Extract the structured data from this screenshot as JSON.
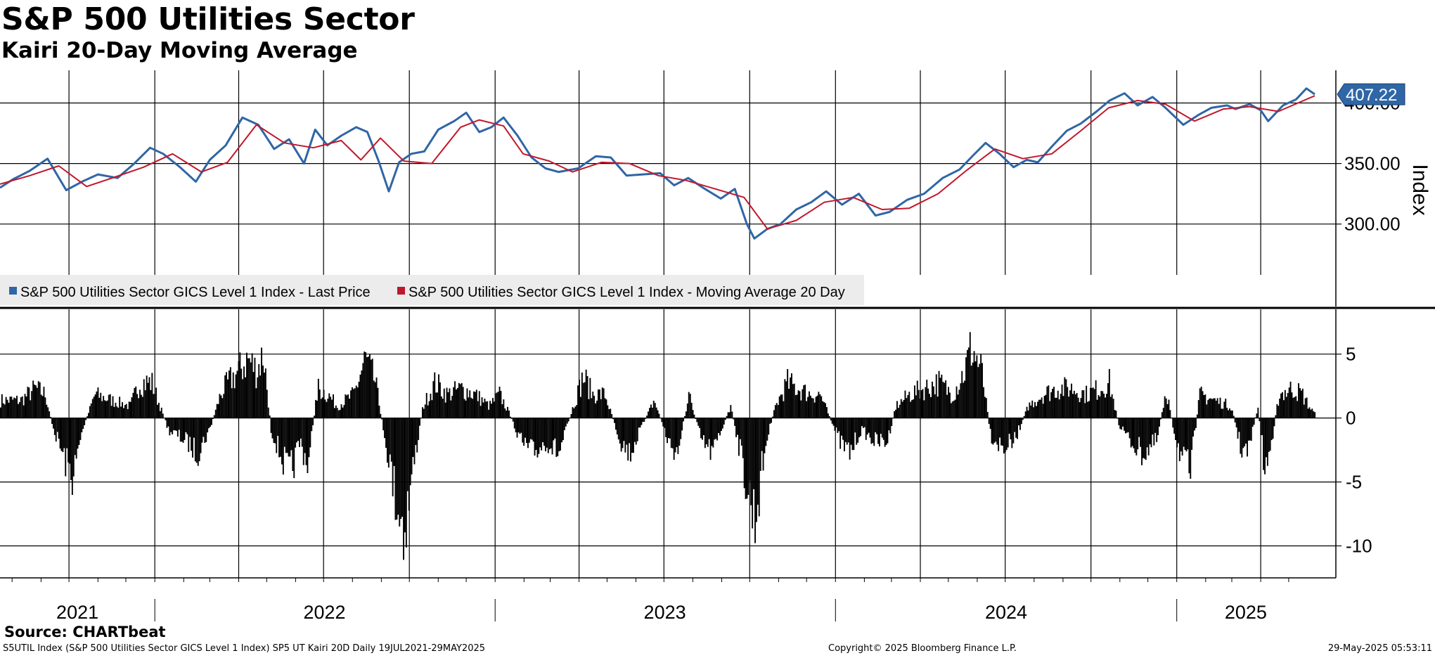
{
  "title": "S&P 500 Utilities Sector",
  "subtitle": "Kairi 20-Day Moving Average",
  "source": "Source: CHARTbeat",
  "footer": {
    "left": "S5UTIL Index (S&P 500 Utilities Sector GICS Level 1 Index) SP5 UT Kairi 20D  Daily 19JUL2021-29MAY2025",
    "center": "Copyright© 2025 Bloomberg Finance L.P.",
    "right": "29-May-2025 05:53:11"
  },
  "colors": {
    "price": "#2f66a6",
    "moving_average": "#c0182b",
    "kairi_bars": "#000000",
    "last_price_tag": "#2f66a6",
    "legend_bg": "#ececec"
  },
  "chart_data": [
    {
      "type": "line",
      "panel": "upper",
      "ylabel": "Index",
      "ylim": [
        258,
        427
      ],
      "yticks": [
        300,
        350,
        400
      ],
      "ytick_labels": [
        "300.00",
        "350.00",
        "400.00"
      ],
      "grid": true,
      "legend_position": "bottom-left",
      "last_value_label": "407.22",
      "series": [
        {
          "name": "S&P 500 Utilities Sector GICS Level 1 Index - Last Price",
          "color": "#2f66a6",
          "points": [
            [
              "2021-07-19",
              330
            ],
            [
              "2021-08-02",
              337
            ],
            [
              "2021-08-20",
              344
            ],
            [
              "2021-09-08",
              354
            ],
            [
              "2021-09-28",
              328
            ],
            [
              "2021-10-15",
              335
            ],
            [
              "2021-11-01",
              341
            ],
            [
              "2021-11-22",
              338
            ],
            [
              "2021-12-10",
              350
            ],
            [
              "2021-12-27",
              363
            ],
            [
              "2022-01-10",
              358
            ],
            [
              "2022-01-28",
              347
            ],
            [
              "2022-02-14",
              335
            ],
            [
              "2022-03-01",
              353
            ],
            [
              "2022-03-18",
              365
            ],
            [
              "2022-04-05",
              388
            ],
            [
              "2022-04-22",
              382
            ],
            [
              "2022-05-09",
              362
            ],
            [
              "2022-05-25",
              370
            ],
            [
              "2022-06-10",
              350
            ],
            [
              "2022-06-22",
              378
            ],
            [
              "2022-07-05",
              365
            ],
            [
              "2022-07-20",
              373
            ],
            [
              "2022-08-05",
              380
            ],
            [
              "2022-08-17",
              376
            ],
            [
              "2022-08-29",
              352
            ],
            [
              "2022-09-09",
              327
            ],
            [
              "2022-09-20",
              351
            ],
            [
              "2022-10-03",
              358
            ],
            [
              "2022-10-17",
              360
            ],
            [
              "2022-11-01",
              378
            ],
            [
              "2022-11-18",
              385
            ],
            [
              "2022-12-01",
              392
            ],
            [
              "2022-12-15",
              376
            ],
            [
              "2022-12-28",
              380
            ],
            [
              "2023-01-10",
              388
            ],
            [
              "2023-01-25",
              373
            ],
            [
              "2023-02-09",
              355
            ],
            [
              "2023-02-24",
              346
            ],
            [
              "2023-03-10",
              343
            ],
            [
              "2023-03-31",
              346
            ],
            [
              "2023-04-19",
              356
            ],
            [
              "2023-05-05",
              355
            ],
            [
              "2023-05-22",
              340
            ],
            [
              "2023-06-08",
              341
            ],
            [
              "2023-06-27",
              342
            ],
            [
              "2023-07-12",
              332
            ],
            [
              "2023-07-27",
              338
            ],
            [
              "2023-08-14",
              329
            ],
            [
              "2023-08-31",
              321
            ],
            [
              "2023-09-15",
              329
            ],
            [
              "2023-09-28",
              300
            ],
            [
              "2023-10-06",
              288
            ],
            [
              "2023-10-20",
              296
            ],
            [
              "2023-11-03",
              300
            ],
            [
              "2023-11-20",
              312
            ],
            [
              "2023-12-06",
              318
            ],
            [
              "2023-12-22",
              327
            ],
            [
              "2024-01-08",
              316
            ],
            [
              "2024-01-26",
              325
            ],
            [
              "2024-02-13",
              307
            ],
            [
              "2024-02-28",
              310
            ],
            [
              "2024-03-18",
              320
            ],
            [
              "2024-04-05",
              325
            ],
            [
              "2024-04-25",
              338
            ],
            [
              "2024-05-13",
              345
            ],
            [
              "2024-05-28",
              357
            ],
            [
              "2024-06-10",
              367
            ],
            [
              "2024-06-25",
              358
            ],
            [
              "2024-07-10",
              347
            ],
            [
              "2024-07-24",
              353
            ],
            [
              "2024-08-05",
              351
            ],
            [
              "2024-08-20",
              364
            ],
            [
              "2024-09-05",
              377
            ],
            [
              "2024-09-20",
              383
            ],
            [
              "2024-10-07",
              393
            ],
            [
              "2024-10-21",
              402
            ],
            [
              "2024-11-06",
              408
            ],
            [
              "2024-11-20",
              398
            ],
            [
              "2024-12-06",
              405
            ],
            [
              "2024-12-20",
              396
            ],
            [
              "2025-01-08",
              382
            ],
            [
              "2025-01-24",
              390
            ],
            [
              "2025-02-07",
              396
            ],
            [
              "2025-02-24",
              398
            ],
            [
              "2025-03-05",
              395
            ],
            [
              "2025-03-20",
              399
            ],
            [
              "2025-04-01",
              394
            ],
            [
              "2025-04-09",
              385
            ],
            [
              "2025-04-25",
              398
            ],
            [
              "2025-05-09",
              403
            ],
            [
              "2025-05-20",
              412
            ],
            [
              "2025-05-29",
              407.22
            ]
          ]
        },
        {
          "name": "S&P 500 Utilities Sector GICS Level 1 Index - Moving Average 20 Day",
          "color": "#c0182b",
          "points": [
            [
              "2021-07-19",
              333
            ],
            [
              "2021-08-20",
              340
            ],
            [
              "2021-09-20",
              348
            ],
            [
              "2021-10-20",
              331
            ],
            [
              "2021-11-20",
              339
            ],
            [
              "2021-12-20",
              347
            ],
            [
              "2022-01-20",
              358
            ],
            [
              "2022-02-20",
              343
            ],
            [
              "2022-03-20",
              351
            ],
            [
              "2022-04-20",
              382
            ],
            [
              "2022-05-20",
              367
            ],
            [
              "2022-06-20",
              363
            ],
            [
              "2022-07-20",
              369
            ],
            [
              "2022-08-10",
              353
            ],
            [
              "2022-08-31",
              371
            ],
            [
              "2022-09-25",
              352
            ],
            [
              "2022-10-25",
              350
            ],
            [
              "2022-11-25",
              380
            ],
            [
              "2022-12-15",
              386
            ],
            [
              "2023-01-10",
              381
            ],
            [
              "2023-01-31",
              358
            ],
            [
              "2023-02-28",
              352
            ],
            [
              "2023-03-25",
              343
            ],
            [
              "2023-04-25",
              351
            ],
            [
              "2023-05-25",
              350
            ],
            [
              "2023-06-25",
              340
            ],
            [
              "2023-07-25",
              336
            ],
            [
              "2023-08-25",
              329
            ],
            [
              "2023-09-25",
              322
            ],
            [
              "2023-10-20",
              296
            ],
            [
              "2023-11-20",
              303
            ],
            [
              "2023-12-20",
              318
            ],
            [
              "2024-01-20",
              322
            ],
            [
              "2024-02-20",
              312
            ],
            [
              "2024-03-20",
              313
            ],
            [
              "2024-04-20",
              325
            ],
            [
              "2024-05-20",
              344
            ],
            [
              "2024-06-20",
              362
            ],
            [
              "2024-07-20",
              354
            ],
            [
              "2024-08-20",
              358
            ],
            [
              "2024-09-20",
              377
            ],
            [
              "2024-10-20",
              396
            ],
            [
              "2024-11-20",
              402
            ],
            [
              "2024-12-20",
              399
            ],
            [
              "2025-01-20",
              385
            ],
            [
              "2025-02-20",
              395
            ],
            [
              "2025-03-20",
              397
            ],
            [
              "2025-04-20",
              393
            ],
            [
              "2025-05-29",
              406
            ]
          ]
        }
      ]
    },
    {
      "type": "bar",
      "panel": "lower",
      "series_name": "Kairi 20-Day",
      "color": "#000000",
      "ylim": [
        -12.5,
        8.5
      ],
      "yticks": [
        -10,
        -5,
        0,
        5
      ],
      "ytick_labels": [
        "-10",
        "-5",
        "0",
        "5"
      ],
      "grid": true,
      "kairi_points": [
        [
          "2021-07-19",
          1.5
        ],
        [
          "2021-08-10",
          1.5
        ],
        [
          "2021-08-25",
          2.5
        ],
        [
          "2021-09-05",
          2
        ],
        [
          "2021-09-14",
          -1
        ],
        [
          "2021-09-28",
          -4
        ],
        [
          "2021-10-05",
          -5
        ],
        [
          "2021-10-15",
          -1
        ],
        [
          "2021-10-28",
          2
        ],
        [
          "2021-11-15",
          1.5
        ],
        [
          "2021-12-05",
          1
        ],
        [
          "2021-12-15",
          3
        ],
        [
          "2021-12-28",
          3
        ],
        [
          "2022-01-15",
          -1
        ],
        [
          "2022-02-04",
          -2
        ],
        [
          "2022-02-15",
          -3
        ],
        [
          "2022-02-28",
          -1
        ],
        [
          "2022-03-12",
          2
        ],
        [
          "2022-03-20",
          3
        ],
        [
          "2022-04-01",
          4
        ],
        [
          "2022-04-10",
          5
        ],
        [
          "2022-04-20",
          4
        ],
        [
          "2022-04-27",
          5.5
        ],
        [
          "2022-05-05",
          -1
        ],
        [
          "2022-05-15",
          -3
        ],
        [
          "2022-05-25",
          -5
        ],
        [
          "2022-06-05",
          -2
        ],
        [
          "2022-06-14",
          -4
        ],
        [
          "2022-06-24",
          2.5
        ],
        [
          "2022-07-05",
          2
        ],
        [
          "2022-07-15",
          1
        ],
        [
          "2022-08-02",
          2
        ],
        [
          "2022-08-14",
          5
        ],
        [
          "2022-08-25",
          3
        ],
        [
          "2022-09-05",
          -2
        ],
        [
          "2022-09-14",
          -6
        ],
        [
          "2022-09-25",
          -9.5
        ],
        [
          "2022-10-05",
          -4
        ],
        [
          "2022-10-15",
          1
        ],
        [
          "2022-10-28",
          3
        ],
        [
          "2022-11-10",
          2
        ],
        [
          "2022-11-25",
          2.5
        ],
        [
          "2022-12-10",
          2
        ],
        [
          "2022-12-25",
          1
        ],
        [
          "2023-01-05",
          2
        ],
        [
          "2023-01-15",
          0.5
        ],
        [
          "2023-01-28",
          -2
        ],
        [
          "2023-02-10",
          -3
        ],
        [
          "2023-02-24",
          -2
        ],
        [
          "2023-03-10",
          -3
        ],
        [
          "2023-03-25",
          1
        ],
        [
          "2023-04-05",
          3.5
        ],
        [
          "2023-04-15",
          2
        ],
        [
          "2023-04-28",
          2
        ],
        [
          "2023-05-15",
          -2
        ],
        [
          "2023-05-25",
          -3
        ],
        [
          "2023-06-05",
          -1
        ],
        [
          "2023-06-20",
          1.5
        ],
        [
          "2023-07-05",
          -2
        ],
        [
          "2023-07-15",
          -3
        ],
        [
          "2023-07-27",
          2
        ],
        [
          "2023-08-10",
          -2
        ],
        [
          "2023-08-22",
          -3
        ],
        [
          "2023-08-31",
          -1
        ],
        [
          "2023-09-10",
          1
        ],
        [
          "2023-09-18",
          -2
        ],
        [
          "2023-09-28",
          -6
        ],
        [
          "2023-10-06",
          -8.5
        ],
        [
          "2023-10-18",
          -2
        ],
        [
          "2023-10-28",
          1
        ],
        [
          "2023-11-10",
          3
        ],
        [
          "2023-11-20",
          2.5
        ],
        [
          "2023-12-05",
          2
        ],
        [
          "2023-12-15",
          2
        ],
        [
          "2024-01-05",
          -2
        ],
        [
          "2024-01-15",
          -3
        ],
        [
          "2024-01-28",
          -1
        ],
        [
          "2024-02-12",
          -2
        ],
        [
          "2024-02-25",
          -2
        ],
        [
          "2024-03-05",
          1
        ],
        [
          "2024-03-20",
          2
        ],
        [
          "2024-04-05",
          2.5
        ],
        [
          "2024-04-20",
          3
        ],
        [
          "2024-05-05",
          2
        ],
        [
          "2024-05-18",
          4
        ],
        [
          "2024-05-25",
          6
        ],
        [
          "2024-06-05",
          4
        ],
        [
          "2024-06-15",
          -1.5
        ],
        [
          "2024-06-28",
          -2.5
        ],
        [
          "2024-07-10",
          -2
        ],
        [
          "2024-07-25",
          1
        ],
        [
          "2024-08-10",
          2
        ],
        [
          "2024-08-25",
          2.5
        ],
        [
          "2024-09-10",
          2.5
        ],
        [
          "2024-09-25",
          2
        ],
        [
          "2024-10-10",
          2.5
        ],
        [
          "2024-10-20",
          3
        ],
        [
          "2024-10-30",
          -0.5
        ],
        [
          "2024-11-12",
          -2
        ],
        [
          "2024-11-25",
          -3
        ],
        [
          "2024-12-10",
          -2
        ],
        [
          "2024-12-20",
          2.5
        ],
        [
          "2024-12-28",
          -1
        ],
        [
          "2025-01-08",
          -4
        ],
        [
          "2025-01-15",
          -4.5
        ],
        [
          "2025-01-25",
          2
        ],
        [
          "2025-02-10",
          1.5
        ],
        [
          "2025-02-28",
          1
        ],
        [
          "2025-03-10",
          -2.5
        ],
        [
          "2025-03-18",
          -3
        ],
        [
          "2025-03-28",
          1
        ],
        [
          "2025-04-05",
          -4.5
        ],
        [
          "2025-04-10",
          -3
        ],
        [
          "2025-04-20",
          2
        ],
        [
          "2025-05-05",
          2.5
        ],
        [
          "2025-05-15",
          2
        ],
        [
          "2025-05-22",
          1
        ],
        [
          "2025-05-29",
          0.3
        ]
      ]
    }
  ],
  "x_axis": {
    "year_labels": [
      "2021",
      "2022",
      "2023",
      "2024",
      "2025"
    ],
    "range": [
      "2021-07-19",
      "2025-05-29"
    ]
  }
}
